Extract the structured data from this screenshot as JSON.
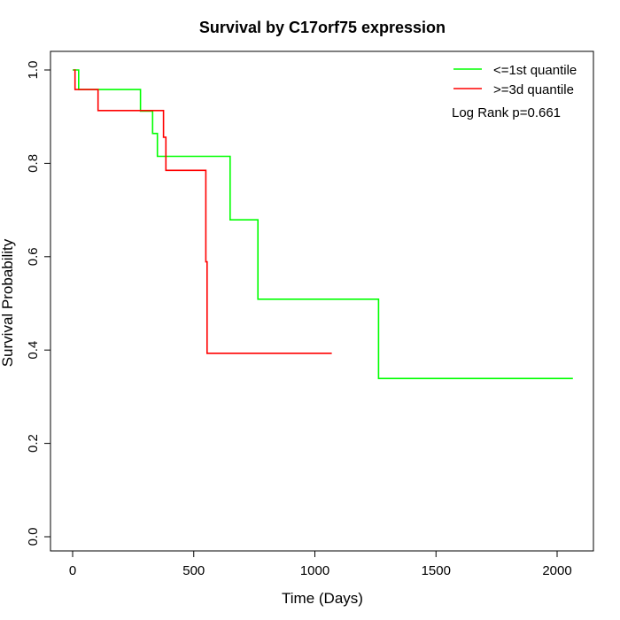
{
  "chart_data": {
    "type": "line",
    "step": true,
    "title": "Survival by C17orf75 expression",
    "xlabel": "Time (Days)",
    "ylabel": "Survival Probability",
    "xlim": [
      0,
      2070
    ],
    "ylim": [
      0,
      1.0
    ],
    "xticks": [
      0,
      500,
      1000,
      1500,
      2000
    ],
    "yticks": [
      0.0,
      0.2,
      0.4,
      0.6,
      0.8,
      1.0
    ],
    "xtick_labels": [
      "0",
      "500",
      "1000",
      "1500",
      "2000"
    ],
    "ytick_labels": [
      "0.0",
      "0.2",
      "0.4",
      "0.6",
      "0.8",
      "1.0"
    ],
    "legend_position": "top-right",
    "annotation": "Log Rank p=0.661",
    "grid": false,
    "series": [
      {
        "name": "<=1st quantile",
        "color": "#00ff00",
        "x": [
          0,
          25,
          25,
          280,
          280,
          330,
          330,
          350,
          350,
          650,
          650,
          765,
          765,
          1263,
          1263,
          2065
        ],
        "y": [
          1.0,
          1.0,
          0.958,
          0.958,
          0.912,
          0.912,
          0.864,
          0.864,
          0.815,
          0.815,
          0.679,
          0.679,
          0.509,
          0.509,
          0.339,
          0.339
        ]
      },
      {
        "name": ">=3d quantile",
        "color": "#ff0000",
        "x": [
          5,
          10,
          10,
          105,
          105,
          375,
          375,
          385,
          385,
          550,
          550,
          555,
          555,
          1070
        ],
        "y": [
          1.0,
          1.0,
          0.958,
          0.958,
          0.913,
          0.913,
          0.856,
          0.856,
          0.785,
          0.785,
          0.589,
          0.589,
          0.393,
          0.393
        ]
      }
    ]
  }
}
